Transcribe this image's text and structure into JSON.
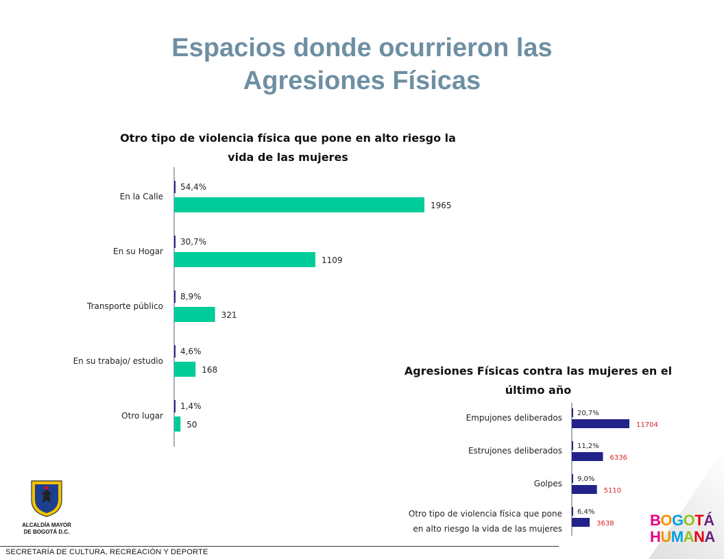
{
  "slide": {
    "title_line1": "Espacios donde ocurrieron las",
    "title_line2": "Agresiones Físicas",
    "footer": "SECRETARÍA DE CULTURA, RECREACIÓN Y DEPORTE",
    "left_logo_line1": "ALCALDÍA MAYOR",
    "left_logo_line2": "DE BOGOTÁ D.C.",
    "right_logo_line1": "BOGOTÁ",
    "right_logo_line2": "HUMANA"
  },
  "colors": {
    "title": "#6e8fa3",
    "chart1_bar": "#00cc99",
    "chart2_bar": "#22228a",
    "chart2_value_text": "#e02020",
    "axis": "#555577"
  },
  "chart_data": [
    {
      "type": "bar",
      "orientation": "horizontal",
      "title_line1": "Otro tipo de violencia física que pone en alto riesgo la",
      "title_line2": "vida de las mujeres",
      "categories": [
        "En la Calle",
        "En su Hogar",
        "Transporte público",
        "En su trabajo/ estudio",
        "Otro lugar"
      ],
      "series": [
        {
          "values": [
            1965,
            1109,
            321,
            168,
            50
          ]
        }
      ],
      "percent_labels": [
        "54,4%",
        "30,7%",
        "8,9%",
        "4,6%",
        "1,4%"
      ],
      "percent_values": [
        54.4,
        30.7,
        8.9,
        4.6,
        1.4
      ],
      "xlim": [
        0,
        1965
      ],
      "grid": false,
      "legend": "none"
    },
    {
      "type": "bar",
      "orientation": "horizontal",
      "title_line1": "Agresiones Físicas contra las mujeres en el",
      "title_line2": "último año",
      "categories": [
        "Empujones deliberados",
        "Estrujones deliberados",
        "Golpes",
        "Otro tipo de violencia física que pone en alto riesgo la vida de las mujeres"
      ],
      "category_lines": [
        [
          "Empujones deliberados"
        ],
        [
          "Estrujones deliberados"
        ],
        [
          "Golpes"
        ],
        [
          "Otro tipo de violencia física que pone",
          "en alto riesgo la vida de las mujeres"
        ]
      ],
      "series": [
        {
          "values": [
            11704,
            6336,
            5110,
            3638
          ]
        }
      ],
      "percent_labels": [
        "20,7%",
        "11,2%",
        "9,0%",
        "6,4%"
      ],
      "percent_values": [
        20.7,
        11.2,
        9.0,
        6.4
      ],
      "xlim": [
        0,
        11704
      ],
      "grid": false,
      "legend": "none"
    }
  ]
}
